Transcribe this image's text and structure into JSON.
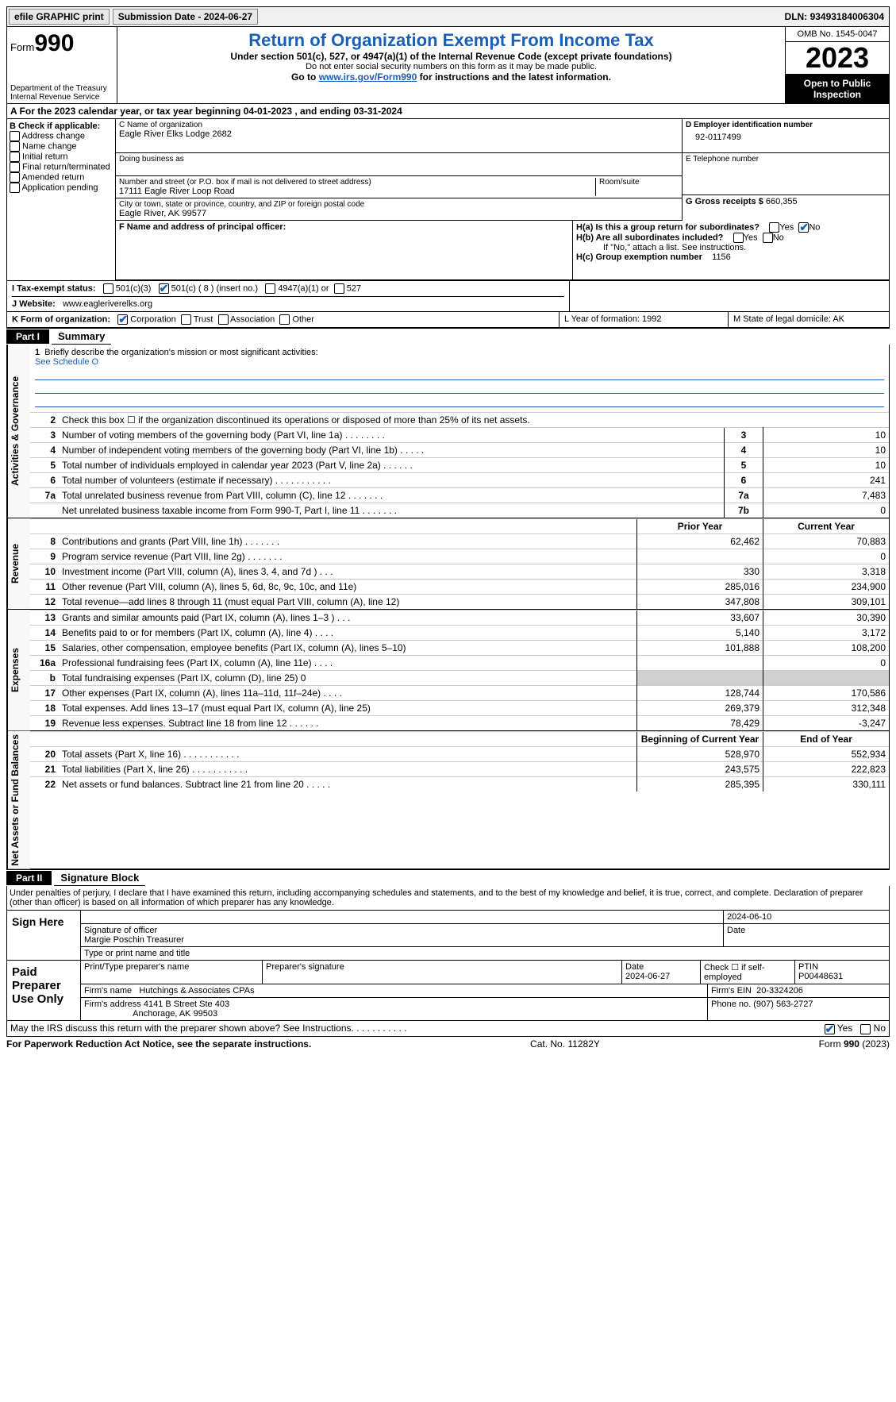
{
  "topbar": {
    "efile": "efile GRAPHIC print",
    "submission": "Submission Date - 2024-06-27",
    "dln_label": "DLN:",
    "dln": "93493184006304"
  },
  "header": {
    "form_prefix": "Form",
    "form_num": "990",
    "dept": "Department of the Treasury\nInternal Revenue Service",
    "title": "Return of Organization Exempt From Income Tax",
    "sub1": "Under section 501(c), 527, or 4947(a)(1) of the Internal Revenue Code (except private foundations)",
    "sub2": "Do not enter social security numbers on this form as it may be made public.",
    "sub3_pre": "Go to ",
    "sub3_link": "www.irs.gov/Form990",
    "sub3_post": " for instructions and the latest information.",
    "omb": "OMB No. 1545-0047",
    "year": "2023",
    "open": "Open to Public Inspection"
  },
  "row_a": "A For the 2023 calendar year, or tax year beginning 04-01-2023    , and ending 03-31-2024",
  "col_b": {
    "label": "B Check if applicable:",
    "opts": [
      "Address change",
      "Name change",
      "Initial return",
      "Final return/terminated",
      "Amended return",
      "Application pending"
    ]
  },
  "block_c": {
    "name_caption": "C Name of organization",
    "name": "Eagle River Elks Lodge 2682",
    "dba_caption": "Doing business as",
    "dba": "",
    "addr_caption": "Number and street (or P.O. box if mail is not delivered to street address)",
    "addr": "17111 Eagle River Loop Road",
    "room_caption": "Room/suite",
    "city_caption": "City or town, state or province, country, and ZIP or foreign postal code",
    "city": "Eagle River, AK  99577"
  },
  "block_d": {
    "caption": "D Employer identification number",
    "val": "92-0117499"
  },
  "block_e": {
    "caption": "E Telephone number",
    "val": ""
  },
  "block_g": {
    "caption": "G Gross receipts $",
    "val": "660,355"
  },
  "block_f": {
    "caption": "F  Name and address of principal officer:"
  },
  "block_h": {
    "ha": "H(a)  Is this a group return for subordinates?",
    "hb": "H(b)  Are all subordinates included?",
    "hb_note": "If \"No,\" attach a list. See instructions.",
    "hc": "H(c)  Group exemption number",
    "hc_val": "1156",
    "yes": "Yes",
    "no": "No"
  },
  "row_i": {
    "label": "I   Tax-exempt status:",
    "o1": "501(c)(3)",
    "o2": "501(c) ( 8 ) (insert no.)",
    "o3": "4947(a)(1) or",
    "o4": "527"
  },
  "row_j": {
    "label": "J   Website:",
    "val": "www.eagleriverelks.org"
  },
  "row_k": {
    "label": "K Form of organization:",
    "o1": "Corporation",
    "o2": "Trust",
    "o3": "Association",
    "o4": "Other",
    "l": "L Year of formation: 1992",
    "m": "M State of legal domicile: AK"
  },
  "part1": {
    "hdr": "Part I",
    "title": "Summary"
  },
  "mission": {
    "num": "1",
    "txt": "Briefly describe the organization's mission or most significant activities:",
    "val": "See Schedule O"
  },
  "gov_lines": [
    {
      "n": "2",
      "t": "Check this box ☐ if the organization discontinued its operations or disposed of more than 25% of its net assets."
    },
    {
      "n": "3",
      "t": "Number of voting members of the governing body (Part VI, line 1a)   .    .    .    .    .    .    .    .",
      "b": "3",
      "v": "10"
    },
    {
      "n": "4",
      "t": "Number of independent voting members of the governing body (Part VI, line 1b)   .    .    .    .    .",
      "b": "4",
      "v": "10"
    },
    {
      "n": "5",
      "t": "Total number of individuals employed in calendar year 2023 (Part V, line 2a)   .    .    .    .    .    .",
      "b": "5",
      "v": "10"
    },
    {
      "n": "6",
      "t": "Total number of volunteers (estimate if necessary)   .    .    .    .    .    .    .    .    .    .    .",
      "b": "6",
      "v": "241"
    },
    {
      "n": "7a",
      "t": "Total unrelated business revenue from Part VIII, column (C), line 12   .    .    .    .    .    .    .",
      "b": "7a",
      "v": "7,483"
    },
    {
      "n": "",
      "t": "Net unrelated business taxable income from Form 990-T, Part I, line 11   .    .    .    .    .    .    .",
      "b": "7b",
      "v": "0"
    }
  ],
  "rev_hdr": {
    "c1": "Prior Year",
    "c2": "Current Year"
  },
  "rev_lines": [
    {
      "n": "8",
      "t": "Contributions and grants (Part VIII, line 1h)   .    .    .    .    .    .    .",
      "p": "62,462",
      "c": "70,883"
    },
    {
      "n": "9",
      "t": "Program service revenue (Part VIII, line 2g)   .    .    .    .    .    .    .",
      "p": "",
      "c": "0"
    },
    {
      "n": "10",
      "t": "Investment income (Part VIII, column (A), lines 3, 4, and 7d )   .    .    .",
      "p": "330",
      "c": "3,318"
    },
    {
      "n": "11",
      "t": "Other revenue (Part VIII, column (A), lines 5, 6d, 8c, 9c, 10c, and 11e)",
      "p": "285,016",
      "c": "234,900"
    },
    {
      "n": "12",
      "t": "Total revenue—add lines 8 through 11 (must equal Part VIII, column (A), line 12)",
      "p": "347,808",
      "c": "309,101"
    }
  ],
  "exp_lines": [
    {
      "n": "13",
      "t": "Grants and similar amounts paid (Part IX, column (A), lines 1–3 )   .    .    .",
      "p": "33,607",
      "c": "30,390"
    },
    {
      "n": "14",
      "t": "Benefits paid to or for members (Part IX, column (A), line 4)   .    .    .    .",
      "p": "5,140",
      "c": "3,172"
    },
    {
      "n": "15",
      "t": "Salaries, other compensation, employee benefits (Part IX, column (A), lines 5–10)",
      "p": "101,888",
      "c": "108,200"
    },
    {
      "n": "16a",
      "t": "Professional fundraising fees (Part IX, column (A), line 11e)   .    .    .    .",
      "p": "",
      "c": "0"
    },
    {
      "n": "b",
      "t": "Total fundraising expenses (Part IX, column (D), line 25) 0",
      "p": "SHADE",
      "c": "SHADE"
    },
    {
      "n": "17",
      "t": "Other expenses (Part IX, column (A), lines 11a–11d, 11f–24e)   .    .    .    .",
      "p": "128,744",
      "c": "170,586"
    },
    {
      "n": "18",
      "t": "Total expenses. Add lines 13–17 (must equal Part IX, column (A), line 25)",
      "p": "269,379",
      "c": "312,348"
    },
    {
      "n": "19",
      "t": "Revenue less expenses. Subtract line 18 from line 12   .    .    .    .    .    .",
      "p": "78,429",
      "c": "-3,247"
    }
  ],
  "net_hdr": {
    "c1": "Beginning of Current Year",
    "c2": "End of Year"
  },
  "net_lines": [
    {
      "n": "20",
      "t": "Total assets (Part X, line 16)   .    .    .    .    .    .    .    .    .    .    .",
      "p": "528,970",
      "c": "552,934"
    },
    {
      "n": "21",
      "t": "Total liabilities (Part X, line 26)   .    .    .    .    .    .    .    .    .    .    .",
      "p": "243,575",
      "c": "222,823"
    },
    {
      "n": "22",
      "t": "Net assets or fund balances. Subtract line 21 from line 20   .    .    .    .    .",
      "p": "285,395",
      "c": "330,111"
    }
  ],
  "side_labels": {
    "gov": "Activities & Governance",
    "rev": "Revenue",
    "exp": "Expenses",
    "net": "Net Assets or Fund Balances"
  },
  "part2": {
    "hdr": "Part II",
    "title": "Signature Block"
  },
  "decl": "Under penalties of perjury, I declare that I have examined this return, including accompanying schedules and statements, and to the best of my knowledge and belief, it is true, correct, and complete. Declaration of preparer (other than officer) is based on all information of which preparer has any knowledge.",
  "sign": {
    "lab": "Sign Here",
    "date": "2024-06-10",
    "sig_caption": "Signature of officer",
    "name": "Margie Poschin  Treasurer",
    "name_caption": "Type or print name and title",
    "date_caption": "Date"
  },
  "prep": {
    "lab": "Paid Preparer Use Only",
    "h1": "Print/Type preparer's name",
    "h2": "Preparer's signature",
    "h3": "Date",
    "h3v": "2024-06-27",
    "h4": "Check ☐ if self-employed",
    "h5": "PTIN",
    "h5v": "P00448631",
    "firm_lab": "Firm's name",
    "firm": "Hutchings & Associates CPAs",
    "ein_lab": "Firm's EIN",
    "ein": "20-3324206",
    "addr_lab": "Firm's address",
    "addr1": "4141 B Street Ste 403",
    "addr2": "Anchorage, AK  99503",
    "phone_lab": "Phone no.",
    "phone": "(907) 563-2727"
  },
  "discuss": {
    "txt": "May the IRS discuss this return with the preparer shown above? See Instructions.   .    .    .    .    .    .    .    .    .    .",
    "yes": "Yes",
    "no": "No"
  },
  "footer": {
    "l": "For Paperwork Reduction Act Notice, see the separate instructions.",
    "m": "Cat. No. 11282Y",
    "r": "Form 990 (2023)"
  }
}
